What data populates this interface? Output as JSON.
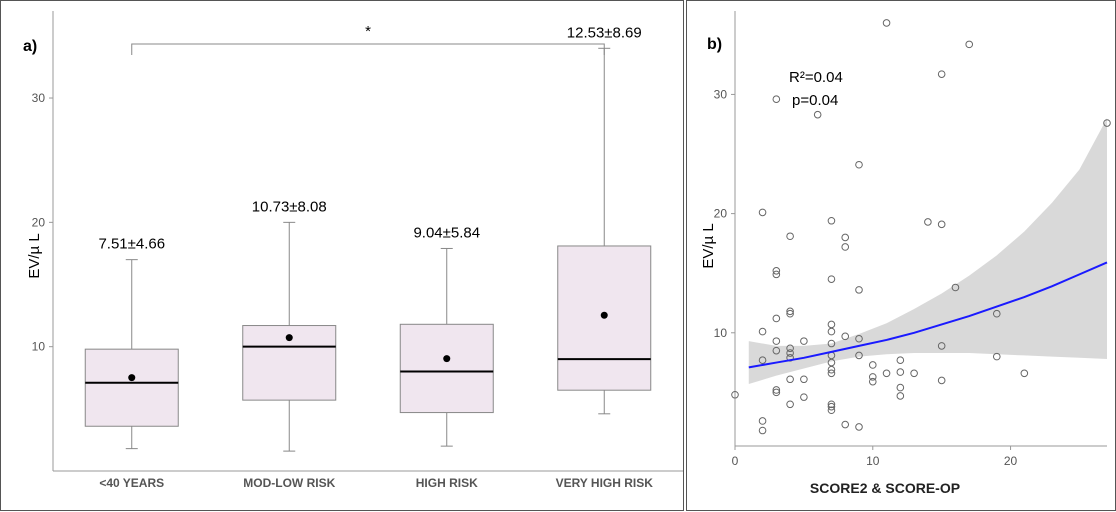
{
  "chart_data": [
    {
      "type": "box",
      "panel_label": "a)",
      "ylabel": "EV/µ L",
      "ylim": [
        0,
        37
      ],
      "yticks": [
        10,
        20,
        30
      ],
      "categories": [
        "<40 YEARS",
        "MOD-LOW RISK",
        "HIGH RISK",
        "VERY HIGH RISK"
      ],
      "boxes": [
        {
          "category": "<40 YEARS",
          "whisker_low": 1.8,
          "q1": 3.6,
          "median": 7.1,
          "q3": 9.8,
          "whisker_high": 17.0,
          "mean": 7.51,
          "label": "7.51±4.66"
        },
        {
          "category": "MOD-LOW RISK",
          "whisker_low": 1.6,
          "q1": 5.7,
          "median": 10.0,
          "q3": 11.7,
          "whisker_high": 20.0,
          "mean": 10.73,
          "label": "10.73±8.08"
        },
        {
          "category": "HIGH RISK",
          "whisker_low": 2.0,
          "q1": 4.7,
          "median": 8.0,
          "q3": 11.8,
          "whisker_high": 17.9,
          "mean": 9.04,
          "label": "9.04±5.84"
        },
        {
          "category": "VERY HIGH RISK",
          "whisker_low": 4.6,
          "q1": 6.5,
          "median": 9.0,
          "q3": 18.1,
          "whisker_high": 34.0,
          "mean": 12.53,
          "label": "12.53±8.69"
        }
      ],
      "significance": {
        "from": "<40 YEARS",
        "to": "VERY HIGH RISK",
        "label": "*"
      },
      "colors": {
        "box_fill": "#f0e6ef",
        "box_stroke": "#888888",
        "median": "#000000",
        "mean": "#000000"
      }
    },
    {
      "type": "scatter",
      "panel_label": "b)",
      "xlabel": "SCORE2 & SCORE-OP",
      "ylabel": "EV/µ L",
      "xlim": [
        0,
        27
      ],
      "ylim": [
        0.5,
        37
      ],
      "xticks": [
        0,
        10,
        20
      ],
      "yticks": [
        10,
        20,
        30
      ],
      "annotation": {
        "r2": "R²=0.04",
        "p": "p=0.04"
      },
      "points": [
        {
          "x": 0,
          "y": 4.8
        },
        {
          "x": 2,
          "y": 1.8
        },
        {
          "x": 2,
          "y": 2.6
        },
        {
          "x": 2,
          "y": 7.7
        },
        {
          "x": 2,
          "y": 10.1
        },
        {
          "x": 2,
          "y": 20.1
        },
        {
          "x": 3,
          "y": 5.0
        },
        {
          "x": 3,
          "y": 5.2
        },
        {
          "x": 3,
          "y": 8.5
        },
        {
          "x": 3,
          "y": 9.3
        },
        {
          "x": 3,
          "y": 11.2
        },
        {
          "x": 3,
          "y": 14.9
        },
        {
          "x": 3,
          "y": 15.2
        },
        {
          "x": 3,
          "y": 29.6
        },
        {
          "x": 4,
          "y": 4.0
        },
        {
          "x": 4,
          "y": 6.1
        },
        {
          "x": 4,
          "y": 7.9
        },
        {
          "x": 4,
          "y": 8.3
        },
        {
          "x": 4,
          "y": 8.7
        },
        {
          "x": 4,
          "y": 11.6
        },
        {
          "x": 4,
          "y": 11.8
        },
        {
          "x": 4,
          "y": 18.1
        },
        {
          "x": 5,
          "y": 4.6
        },
        {
          "x": 5,
          "y": 6.1
        },
        {
          "x": 5,
          "y": 9.3
        },
        {
          "x": 6,
          "y": 28.3
        },
        {
          "x": 7,
          "y": 3.5
        },
        {
          "x": 7,
          "y": 3.8
        },
        {
          "x": 7,
          "y": 4.0
        },
        {
          "x": 7,
          "y": 6.6
        },
        {
          "x": 7,
          "y": 6.9
        },
        {
          "x": 7,
          "y": 7.5
        },
        {
          "x": 7,
          "y": 8.1
        },
        {
          "x": 7,
          "y": 9.1
        },
        {
          "x": 7,
          "y": 10.1
        },
        {
          "x": 7,
          "y": 10.7
        },
        {
          "x": 7,
          "y": 14.5
        },
        {
          "x": 7,
          "y": 19.4
        },
        {
          "x": 8,
          "y": 2.3
        },
        {
          "x": 8,
          "y": 9.7
        },
        {
          "x": 8,
          "y": 17.2
        },
        {
          "x": 8,
          "y": 18.0
        },
        {
          "x": 9,
          "y": 2.1
        },
        {
          "x": 9,
          "y": 8.1
        },
        {
          "x": 9,
          "y": 9.5
        },
        {
          "x": 9,
          "y": 13.6
        },
        {
          "x": 9,
          "y": 24.1
        },
        {
          "x": 10,
          "y": 5.9
        },
        {
          "x": 10,
          "y": 6.3
        },
        {
          "x": 10,
          "y": 7.3
        },
        {
          "x": 11,
          "y": 6.6
        },
        {
          "x": 11,
          "y": 36.0
        },
        {
          "x": 12,
          "y": 4.7
        },
        {
          "x": 12,
          "y": 5.4
        },
        {
          "x": 12,
          "y": 6.7
        },
        {
          "x": 12,
          "y": 7.7
        },
        {
          "x": 13,
          "y": 6.6
        },
        {
          "x": 14,
          "y": 19.3
        },
        {
          "x": 15,
          "y": 6.0
        },
        {
          "x": 15,
          "y": 8.9
        },
        {
          "x": 15,
          "y": 19.1
        },
        {
          "x": 15,
          "y": 31.7
        },
        {
          "x": 16,
          "y": 13.8
        },
        {
          "x": 17,
          "y": 34.2
        },
        {
          "x": 19,
          "y": 8.0
        },
        {
          "x": 19,
          "y": 11.6
        },
        {
          "x": 21,
          "y": 6.6
        },
        {
          "x": 27,
          "y": 27.6
        }
      ],
      "fit": {
        "x": [
          1,
          3,
          5,
          7,
          9,
          11,
          13,
          15,
          17,
          19,
          21,
          23,
          25,
          27
        ],
        "y": [
          7.1,
          7.5,
          7.9,
          8.4,
          8.9,
          9.4,
          10.0,
          10.7,
          11.4,
          12.2,
          13.0,
          13.9,
          14.9,
          15.9
        ],
        "ci_low": [
          5.7,
          6.4,
          7.0,
          7.6,
          8.0,
          8.2,
          8.3,
          8.3,
          8.3,
          8.2,
          8.1,
          8.0,
          7.9,
          7.8
        ],
        "ci_high": [
          9.3,
          8.9,
          8.9,
          9.1,
          9.9,
          10.8,
          12.0,
          13.3,
          14.8,
          16.5,
          18.5,
          20.9,
          23.7,
          28.0
        ]
      },
      "colors": {
        "fit_line": "#1a1aff",
        "ci_band": "#d9d9d9",
        "points": "#666666"
      }
    }
  ]
}
